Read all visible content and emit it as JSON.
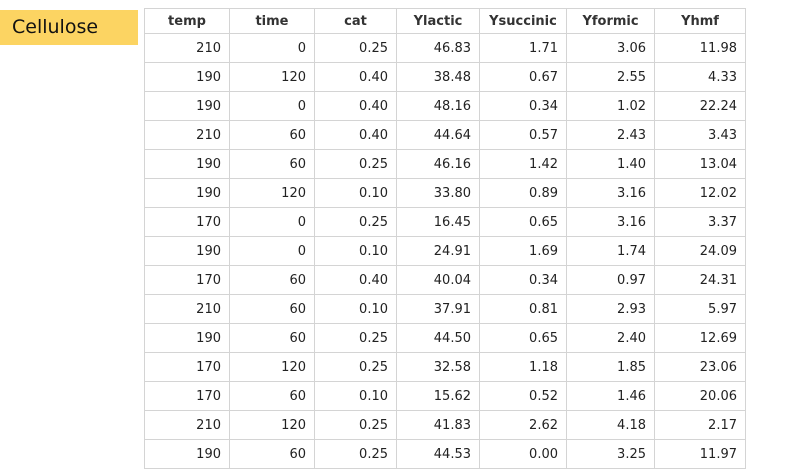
{
  "label": "Cellulose",
  "table": {
    "columns": [
      "temp",
      "time",
      "cat",
      "Ylactic",
      "Ysuccinic",
      "Yformic",
      "Yhmf"
    ],
    "rows": [
      [
        "210",
        "0",
        "0.25",
        "46.83",
        "1.71",
        "3.06",
        "11.98"
      ],
      [
        "190",
        "120",
        "0.40",
        "38.48",
        "0.67",
        "2.55",
        "4.33"
      ],
      [
        "190",
        "0",
        "0.40",
        "48.16",
        "0.34",
        "1.02",
        "22.24"
      ],
      [
        "210",
        "60",
        "0.40",
        "44.64",
        "0.57",
        "2.43",
        "3.43"
      ],
      [
        "190",
        "60",
        "0.25",
        "46.16",
        "1.42",
        "1.40",
        "13.04"
      ],
      [
        "190",
        "120",
        "0.10",
        "33.80",
        "0.89",
        "3.16",
        "12.02"
      ],
      [
        "170",
        "0",
        "0.25",
        "16.45",
        "0.65",
        "3.16",
        "3.37"
      ],
      [
        "190",
        "0",
        "0.10",
        "24.91",
        "1.69",
        "1.74",
        "24.09"
      ],
      [
        "170",
        "60",
        "0.40",
        "40.04",
        "0.34",
        "0.97",
        "24.31"
      ],
      [
        "210",
        "60",
        "0.10",
        "37.91",
        "0.81",
        "2.93",
        "5.97"
      ],
      [
        "190",
        "60",
        "0.25",
        "44.50",
        "0.65",
        "2.40",
        "12.69"
      ],
      [
        "170",
        "120",
        "0.25",
        "32.58",
        "1.18",
        "1.85",
        "23.06"
      ],
      [
        "170",
        "60",
        "0.10",
        "15.62",
        "0.52",
        "1.46",
        "20.06"
      ],
      [
        "210",
        "120",
        "0.25",
        "41.83",
        "2.62",
        "4.18",
        "2.17"
      ],
      [
        "190",
        "60",
        "0.25",
        "44.53",
        "0.00",
        "3.25",
        "11.97"
      ]
    ]
  }
}
